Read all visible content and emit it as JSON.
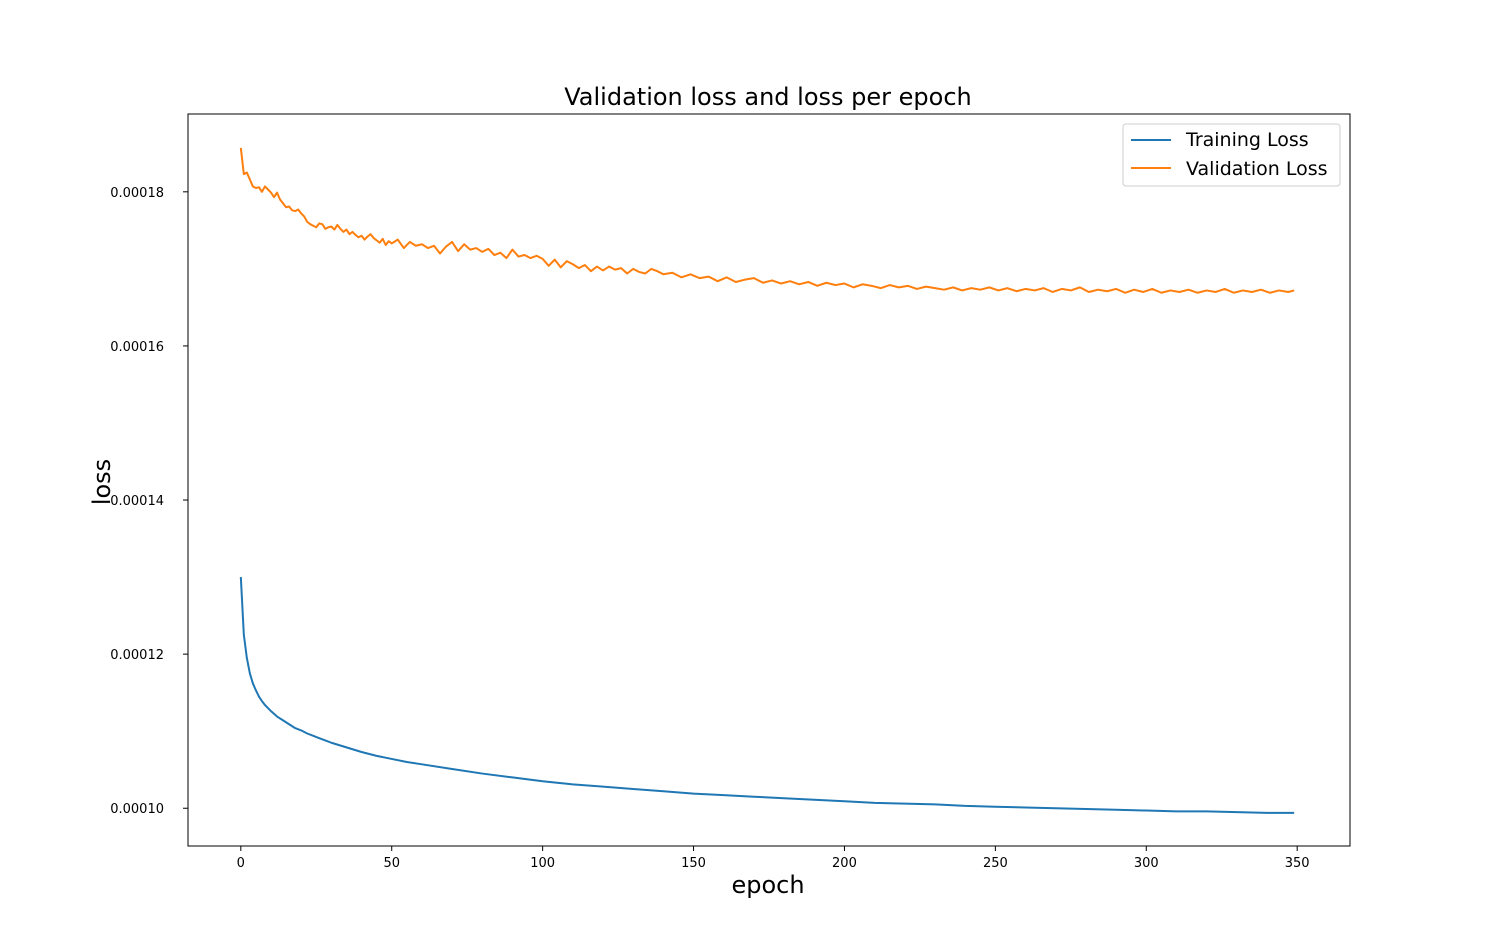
{
  "chart_data": {
    "type": "line",
    "title": "Validation loss and loss per epoch",
    "xlabel": "epoch",
    "ylabel": "loss",
    "xlim": [
      -17.5,
      367.5
    ],
    "ylim": [
      9.51e-05,
      0.0001901
    ],
    "xticks": [
      {
        "value": 0,
        "label": "0"
      },
      {
        "value": 50,
        "label": "50"
      },
      {
        "value": 100,
        "label": "100"
      },
      {
        "value": 150,
        "label": "150"
      },
      {
        "value": 200,
        "label": "200"
      },
      {
        "value": 250,
        "label": "250"
      },
      {
        "value": 300,
        "label": "300"
      },
      {
        "value": 350,
        "label": "350"
      }
    ],
    "yticks": [
      {
        "value": 0.0001,
        "label": "0.00010"
      },
      {
        "value": 0.00012,
        "label": "0.00012"
      },
      {
        "value": 0.00014,
        "label": "0.00014"
      },
      {
        "value": 0.00016,
        "label": "0.00016"
      },
      {
        "value": 0.00018,
        "label": "0.00018"
      }
    ],
    "grid": false,
    "legend_position": "top-right",
    "series": [
      {
        "name": "Training Loss",
        "color": "#1f77b4",
        "x": [
          0,
          1,
          2,
          3,
          4,
          5,
          6,
          7,
          8,
          9,
          10,
          12,
          14,
          16,
          18,
          20,
          22,
          24,
          26,
          28,
          30,
          35,
          40,
          45,
          50,
          55,
          60,
          70,
          80,
          90,
          100,
          110,
          120,
          130,
          140,
          150,
          160,
          170,
          180,
          190,
          200,
          210,
          220,
          230,
          240,
          250,
          260,
          270,
          280,
          290,
          300,
          310,
          320,
          330,
          340,
          345,
          349
        ],
        "values": [
          0.00013,
          0.0001225,
          0.0001195,
          0.0001175,
          0.0001162,
          0.0001153,
          0.0001145,
          0.0001139,
          0.0001134,
          0.000113,
          0.0001126,
          0.0001119,
          0.0001114,
          0.0001109,
          0.0001104,
          0.0001101,
          0.0001097,
          0.0001094,
          0.0001091,
          0.0001088,
          0.0001085,
          0.0001079,
          0.0001073,
          0.0001068,
          0.0001064,
          0.000106,
          0.0001057,
          0.0001051,
          0.0001045,
          0.000104,
          0.0001035,
          0.0001031,
          0.0001028,
          0.0001025,
          0.0001022,
          0.0001019,
          0.0001017,
          0.0001015,
          0.0001013,
          0.0001011,
          0.0001009,
          0.0001007,
          0.0001006,
          0.0001005,
          0.0001003,
          0.0001002,
          0.0001001,
          0.0001,
          9.99e-05,
          9.98e-05,
          9.97e-05,
          9.96e-05,
          9.96e-05,
          9.95e-05,
          9.94e-05,
          9.94e-05,
          9.94e-05
        ]
      },
      {
        "name": "Validation Loss",
        "color": "#ff7f0e",
        "x": [
          0,
          1,
          2,
          3,
          4,
          5,
          6,
          7,
          8,
          9,
          10,
          11,
          12,
          13,
          14,
          15,
          16,
          17,
          18,
          19,
          20,
          21,
          22,
          23,
          24,
          25,
          26,
          27,
          28,
          29,
          30,
          31,
          32,
          33,
          34,
          35,
          36,
          37,
          38,
          39,
          40,
          41,
          42,
          43,
          44,
          45,
          46,
          47,
          48,
          49,
          50,
          52,
          54,
          56,
          58,
          60,
          62,
          64,
          66,
          68,
          70,
          72,
          74,
          76,
          78,
          80,
          82,
          84,
          86,
          88,
          90,
          92,
          94,
          96,
          98,
          100,
          102,
          104,
          106,
          108,
          110,
          112,
          114,
          116,
          118,
          120,
          122,
          124,
          126,
          128,
          130,
          132,
          134,
          136,
          138,
          140,
          143,
          146,
          149,
          152,
          155,
          158,
          161,
          164,
          167,
          170,
          173,
          176,
          179,
          182,
          185,
          188,
          191,
          194,
          197,
          200,
          203,
          206,
          209,
          212,
          215,
          218,
          221,
          224,
          227,
          230,
          233,
          236,
          239,
          242,
          245,
          248,
          251,
          254,
          257,
          260,
          263,
          266,
          269,
          272,
          275,
          278,
          281,
          284,
          287,
          290,
          293,
          296,
          299,
          302,
          305,
          308,
          311,
          314,
          317,
          320,
          323,
          326,
          329,
          332,
          335,
          338,
          341,
          344,
          347,
          349
        ],
        "values": [
          0.0001857,
          0.0001823,
          0.0001825,
          0.0001816,
          0.0001807,
          0.0001805,
          0.0001806,
          0.00018,
          0.0001807,
          0.0001803,
          0.0001799,
          0.0001793,
          0.0001799,
          0.000179,
          0.0001785,
          0.000178,
          0.0001781,
          0.0001776,
          0.0001775,
          0.0001777,
          0.0001772,
          0.0001768,
          0.0001761,
          0.0001758,
          0.0001756,
          0.0001754,
          0.0001759,
          0.0001758,
          0.0001752,
          0.0001754,
          0.0001755,
          0.0001751,
          0.0001757,
          0.0001752,
          0.0001748,
          0.0001751,
          0.0001745,
          0.0001748,
          0.0001744,
          0.0001741,
          0.0001743,
          0.0001738,
          0.0001742,
          0.0001745,
          0.000174,
          0.0001737,
          0.0001734,
          0.0001739,
          0.0001731,
          0.0001736,
          0.0001733,
          0.0001738,
          0.0001727,
          0.0001735,
          0.000173,
          0.0001732,
          0.0001727,
          0.000173,
          0.000172,
          0.0001729,
          0.0001735,
          0.0001723,
          0.0001732,
          0.0001725,
          0.0001727,
          0.0001722,
          0.0001726,
          0.0001718,
          0.0001721,
          0.0001714,
          0.0001725,
          0.0001716,
          0.0001718,
          0.0001714,
          0.0001717,
          0.0001713,
          0.0001704,
          0.0001712,
          0.0001702,
          0.000171,
          0.0001706,
          0.0001701,
          0.0001705,
          0.0001697,
          0.0001703,
          0.0001698,
          0.0001703,
          0.0001699,
          0.0001701,
          0.0001694,
          0.00017,
          0.0001696,
          0.0001694,
          0.00017,
          0.0001697,
          0.0001693,
          0.0001695,
          0.0001689,
          0.0001693,
          0.0001688,
          0.000169,
          0.0001684,
          0.0001689,
          0.0001683,
          0.0001686,
          0.0001688,
          0.0001682,
          0.0001685,
          0.0001681,
          0.0001684,
          0.000168,
          0.0001683,
          0.0001678,
          0.0001682,
          0.0001679,
          0.0001681,
          0.0001676,
          0.000168,
          0.0001678,
          0.0001675,
          0.0001679,
          0.0001676,
          0.0001678,
          0.0001674,
          0.0001677,
          0.0001675,
          0.0001673,
          0.0001676,
          0.0001672,
          0.0001675,
          0.0001673,
          0.0001676,
          0.0001672,
          0.0001675,
          0.0001671,
          0.0001674,
          0.0001672,
          0.0001675,
          0.000167,
          0.0001674,
          0.0001672,
          0.0001676,
          0.000167,
          0.0001673,
          0.0001671,
          0.0001674,
          0.0001669,
          0.0001673,
          0.000167,
          0.0001674,
          0.0001669,
          0.0001672,
          0.000167,
          0.0001673,
          0.0001669,
          0.0001672,
          0.000167,
          0.0001674,
          0.0001669,
          0.0001672,
          0.000167,
          0.0001673,
          0.0001669,
          0.0001672,
          0.000167,
          0.0001672
        ]
      }
    ]
  }
}
